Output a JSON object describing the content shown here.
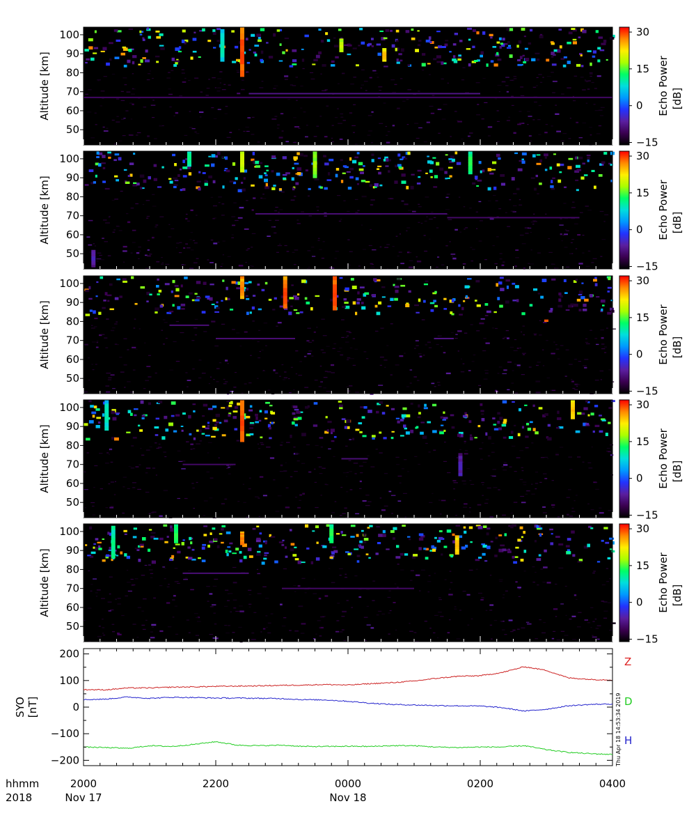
{
  "time_axis": {
    "row_label_time": "hhmm",
    "row_label_year": "2018",
    "ticks": [
      "2000",
      "2200",
      "0000",
      "0200",
      "0400"
    ],
    "dates": [
      {
        "at": "2000",
        "text": "Nov 17"
      },
      {
        "at": "0000",
        "text": "Nov 18"
      }
    ],
    "range_hours": [
      20,
      28
    ]
  },
  "rti_panels": {
    "count": 5,
    "ylabel": "Altitude [km]",
    "ylim": [
      42,
      104
    ],
    "yticks": [
      "50",
      "60",
      "70",
      "80",
      "90",
      "100"
    ],
    "ytick_values": [
      50,
      60,
      70,
      80,
      90,
      100
    ],
    "colorbar": {
      "title_line1": "Echo Power",
      "title_line2": "[dB]",
      "ticks": [
        "30",
        "15",
        "0",
        "−15"
      ],
      "tick_values": [
        30,
        15,
        0,
        -15
      ],
      "range": [
        -16,
        32
      ],
      "colors": [
        "#000000",
        "#3a0050",
        "#5a1ea0",
        "#2233ff",
        "#0099ff",
        "#00dddd",
        "#00ff66",
        "#aaff00",
        "#ffee00",
        "#ff8800",
        "#ff0000"
      ]
    }
  },
  "chart_data": [
    {
      "type": "heatmap",
      "panel": 1,
      "ylabel": "Altitude [km]",
      "ylim": [
        42,
        104
      ],
      "value_label": "Echo Power [dB]",
      "value_range": [
        -15,
        32
      ],
      "bands": [
        {
          "alt": 67,
          "start": 20.0,
          "end": 28.0,
          "level": -10
        },
        {
          "alt": 69,
          "start": 22.5,
          "end": 26.0,
          "level": -8
        }
      ],
      "streaks": [
        {
          "t": 22.1,
          "top": 103,
          "bottom": 86,
          "level": 10
        },
        {
          "t": 22.4,
          "top": 104,
          "bottom": 78,
          "level": 30
        },
        {
          "t": 23.9,
          "top": 98,
          "bottom": 91,
          "level": 20
        },
        {
          "t": 24.55,
          "top": 93,
          "bottom": 86,
          "level": 25
        }
      ],
      "density": 0.42
    },
    {
      "type": "heatmap",
      "panel": 2,
      "ylabel": "Altitude [km]",
      "ylim": [
        42,
        104
      ],
      "value_label": "Echo Power [dB]",
      "value_range": [
        -15,
        32
      ],
      "bands": [
        {
          "alt": 71,
          "start": 22.6,
          "end": 25.5,
          "level": -9
        },
        {
          "alt": 69,
          "start": 25.5,
          "end": 27.5,
          "level": -10
        }
      ],
      "streaks": [
        {
          "t": 20.15,
          "top": 52,
          "bottom": 43,
          "level": -5
        },
        {
          "t": 21.6,
          "top": 104,
          "bottom": 96,
          "level": 12
        },
        {
          "t": 22.4,
          "top": 104,
          "bottom": 93,
          "level": 20
        },
        {
          "t": 23.5,
          "top": 104,
          "bottom": 90,
          "level": 18
        },
        {
          "t": 25.85,
          "top": 104,
          "bottom": 92,
          "level": 14
        }
      ],
      "density": 0.45
    },
    {
      "type": "heatmap",
      "panel": 3,
      "ylabel": "Altitude [km]",
      "ylim": [
        42,
        104
      ],
      "value_label": "Echo Power [dB]",
      "value_range": [
        -15,
        32
      ],
      "bands": [
        {
          "alt": 78,
          "start": 21.3,
          "end": 21.9,
          "level": -9
        },
        {
          "alt": 71,
          "start": 22.0,
          "end": 23.2,
          "level": -9
        },
        {
          "alt": 71,
          "start": 25.3,
          "end": 25.6,
          "level": -8
        }
      ],
      "streaks": [
        {
          "t": 22.4,
          "top": 104,
          "bottom": 92,
          "level": 28
        },
        {
          "t": 23.05,
          "top": 104,
          "bottom": 87,
          "level": 30
        },
        {
          "t": 23.8,
          "top": 104,
          "bottom": 86,
          "level": 30
        },
        {
          "t": 27.0,
          "top": 81,
          "bottom": 80,
          "level": 30
        }
      ],
      "density": 0.38
    },
    {
      "type": "heatmap",
      "panel": 4,
      "ylabel": "Altitude [km]",
      "ylim": [
        42,
        104
      ],
      "value_label": "Echo Power [dB]",
      "value_range": [
        -15,
        32
      ],
      "bands": [
        {
          "alt": 70,
          "start": 21.5,
          "end": 22.3,
          "level": -10
        },
        {
          "alt": 73,
          "start": 23.9,
          "end": 24.3,
          "level": -9
        }
      ],
      "streaks": [
        {
          "t": 20.35,
          "top": 104,
          "bottom": 88,
          "level": 10
        },
        {
          "t": 22.4,
          "top": 104,
          "bottom": 82,
          "level": 30
        },
        {
          "t": 25.7,
          "top": 76,
          "bottom": 64,
          "level": -5
        },
        {
          "t": 27.4,
          "top": 104,
          "bottom": 94,
          "level": 25
        }
      ],
      "density": 0.4
    },
    {
      "type": "heatmap",
      "panel": 5,
      "ylabel": "Altitude [km]",
      "ylim": [
        42,
        104
      ],
      "value_label": "Echo Power [dB]",
      "value_range": [
        -15,
        32
      ],
      "bands": [
        {
          "alt": 78,
          "start": 21.5,
          "end": 22.5,
          "level": -9
        },
        {
          "alt": 70,
          "start": 23.0,
          "end": 25.0,
          "level": -10
        }
      ],
      "streaks": [
        {
          "t": 20.45,
          "top": 103,
          "bottom": 86,
          "level": 12
        },
        {
          "t": 21.4,
          "top": 104,
          "bottom": 94,
          "level": 14
        },
        {
          "t": 22.4,
          "top": 100,
          "bottom": 93,
          "level": 28
        },
        {
          "t": 23.75,
          "top": 104,
          "bottom": 94,
          "level": 14
        },
        {
          "t": 25.65,
          "top": 98,
          "bottom": 88,
          "level": 25
        }
      ],
      "density": 0.42
    },
    {
      "type": "line",
      "ylabel_line1": "SYO",
      "ylabel_line2": "[nT]",
      "ylim": [
        -220,
        220
      ],
      "yticks": [
        "200",
        "100",
        "0",
        "−100",
        "−200"
      ],
      "ytick_values": [
        200,
        100,
        0,
        -100,
        -200
      ],
      "x": [
        20.0,
        20.33,
        20.67,
        21.0,
        21.33,
        21.67,
        22.0,
        22.33,
        22.67,
        23.0,
        23.33,
        23.67,
        24.0,
        24.33,
        24.67,
        25.0,
        25.33,
        25.67,
        26.0,
        26.33,
        26.67,
        27.0,
        27.33,
        27.67,
        28.0
      ],
      "series": [
        {
          "name": "Z",
          "color": "#cc2222",
          "values": [
            66,
            65,
            72,
            72,
            75,
            76,
            78,
            79,
            80,
            82,
            83,
            85,
            83,
            88,
            92,
            98,
            108,
            116,
            118,
            130,
            152,
            138,
            110,
            104,
            102
          ]
        },
        {
          "name": "D",
          "color": "#2222cc",
          "values": [
            28,
            30,
            38,
            33,
            37,
            36,
            34,
            34,
            33,
            32,
            28,
            27,
            22,
            15,
            10,
            8,
            6,
            5,
            4,
            -2,
            -15,
            -8,
            5,
            10,
            12
          ]
        },
        {
          "name": "H",
          "color": "#22cc22",
          "values": [
            -150,
            -152,
            -155,
            -145,
            -148,
            -140,
            -130,
            -143,
            -145,
            -143,
            -148,
            -148,
            -147,
            -148,
            -145,
            -145,
            -150,
            -152,
            -150,
            -150,
            -145,
            -160,
            -170,
            -175,
            -178
          ]
        }
      ],
      "legend_placement": "right",
      "legend_colors": [
        "#dd2222",
        "#22cc22",
        "#2222cc"
      ]
    }
  ],
  "stamp": "Thu Apr 18 14:53:34 2019"
}
